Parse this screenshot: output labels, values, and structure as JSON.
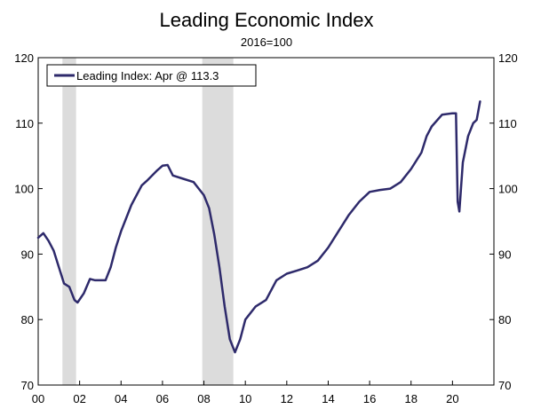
{
  "chart_data": {
    "type": "line",
    "title": "Leading Economic Index",
    "subtitle": "2016=100",
    "xlabel": "",
    "ylabel": "",
    "xlim": [
      2000,
      2022
    ],
    "ylim": [
      70,
      120
    ],
    "y_ticks": [
      70,
      80,
      90,
      100,
      110,
      120
    ],
    "x_ticks": [
      2000,
      2002,
      2004,
      2006,
      2008,
      2010,
      2012,
      2014,
      2016,
      2018,
      2020
    ],
    "x_tick_labels": [
      "00",
      "02",
      "04",
      "06",
      "08",
      "10",
      "12",
      "14",
      "16",
      "18",
      "20"
    ],
    "grid": false,
    "legend_position": "top-left",
    "recessions": [
      [
        2001.17,
        2001.83
      ],
      [
        2007.92,
        2009.42
      ]
    ],
    "series": [
      {
        "name": "Leading Index: Apr @ 113.3",
        "color": "#2e2a6b",
        "x": [
          2000.0,
          2000.25,
          2000.5,
          2000.75,
          2001.0,
          2001.25,
          2001.5,
          2001.75,
          2001.9,
          2002.2,
          2002.5,
          2002.75,
          2003.0,
          2003.25,
          2003.5,
          2003.75,
          2004.0,
          2004.5,
          2005.0,
          2005.25,
          2005.5,
          2005.75,
          2006.0,
          2006.25,
          2006.5,
          2007.0,
          2007.5,
          2007.75,
          2008.0,
          2008.25,
          2008.5,
          2008.75,
          2009.0,
          2009.25,
          2009.5,
          2009.75,
          2010.0,
          2010.5,
          2011.0,
          2011.5,
          2012.0,
          2012.5,
          2013.0,
          2013.5,
          2014.0,
          2014.5,
          2015.0,
          2015.5,
          2016.0,
          2016.5,
          2017.0,
          2017.5,
          2018.0,
          2018.5,
          2018.75,
          2019.0,
          2019.5,
          2020.0,
          2020.17,
          2020.25,
          2020.33,
          2020.5,
          2020.75,
          2021.0,
          2021.17,
          2021.33
        ],
        "values": [
          92.5,
          93.2,
          92.0,
          90.5,
          88.0,
          85.5,
          85.0,
          83.0,
          82.6,
          84.0,
          86.2,
          86.0,
          86.0,
          86.0,
          88.0,
          91.0,
          93.5,
          97.5,
          100.5,
          101.2,
          102.0,
          102.8,
          103.5,
          103.6,
          102.0,
          101.5,
          101.0,
          100.0,
          99.0,
          97.0,
          93.0,
          88.0,
          82.0,
          77.0,
          75.0,
          77.0,
          80.0,
          82.0,
          83.0,
          86.0,
          87.0,
          87.5,
          88.0,
          89.0,
          91.0,
          93.5,
          96.0,
          98.0,
          99.5,
          99.8,
          100.0,
          101.0,
          103.0,
          105.5,
          108.0,
          109.5,
          111.3,
          111.5,
          111.5,
          98.0,
          96.5,
          104.0,
          108.0,
          110.0,
          110.5,
          113.3
        ]
      }
    ]
  }
}
